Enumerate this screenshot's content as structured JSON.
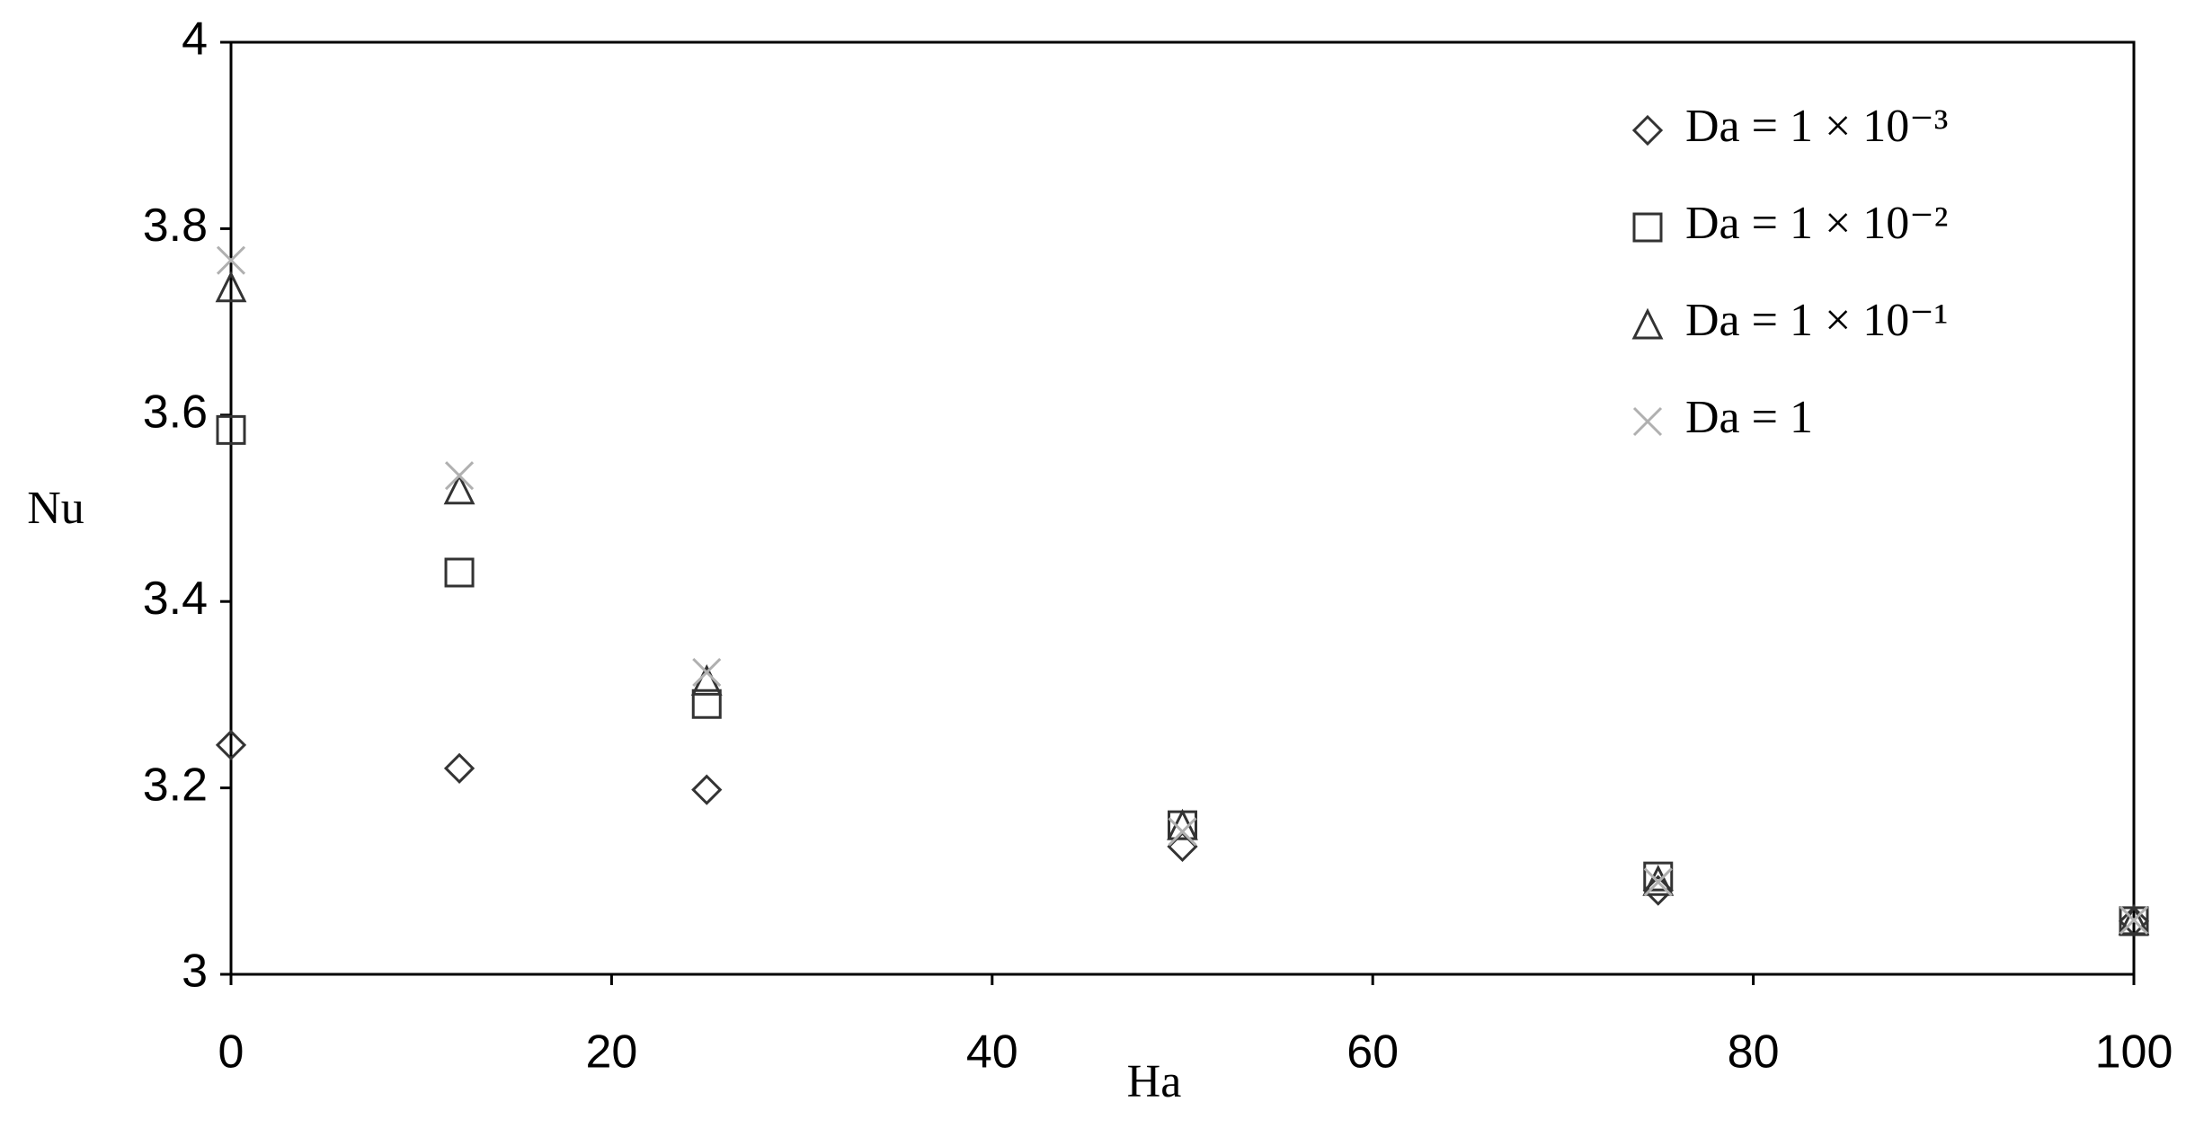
{
  "chart_data": {
    "type": "scatter",
    "x_label": "Ha",
    "y_label": "Nu",
    "x": [
      0,
      12,
      25,
      50,
      75,
      100
    ],
    "series": [
      {
        "name": "Da = 1 × 10⁻³",
        "marker": "diamond",
        "color": "#333333",
        "values": [
          3.246,
          3.221,
          3.198,
          3.137,
          3.09,
          3.057
        ]
      },
      {
        "name": "Da = 1 × 10⁻²",
        "marker": "square",
        "color": "#333333",
        "values": [
          3.584,
          3.431,
          3.29,
          3.16,
          3.105,
          3.057
        ]
      },
      {
        "name": "Da = 1 × 10⁻¹",
        "marker": "triangle",
        "color": "#333333",
        "values": [
          3.737,
          3.52,
          3.315,
          3.16,
          3.1,
          3.058
        ]
      },
      {
        "name": "Da = 1",
        "marker": "cross",
        "color": "#b0b0b0",
        "values": [
          3.766,
          3.535,
          3.324,
          3.153,
          3.099,
          3.058
        ]
      }
    ],
    "xlim": [
      0,
      100
    ],
    "xticks": [
      0,
      20,
      40,
      60,
      80,
      100
    ],
    "ylim": [
      3,
      4
    ],
    "yticks": [
      3,
      3.2,
      3.4,
      3.6,
      3.8,
      4
    ],
    "legend": "upper-right"
  }
}
